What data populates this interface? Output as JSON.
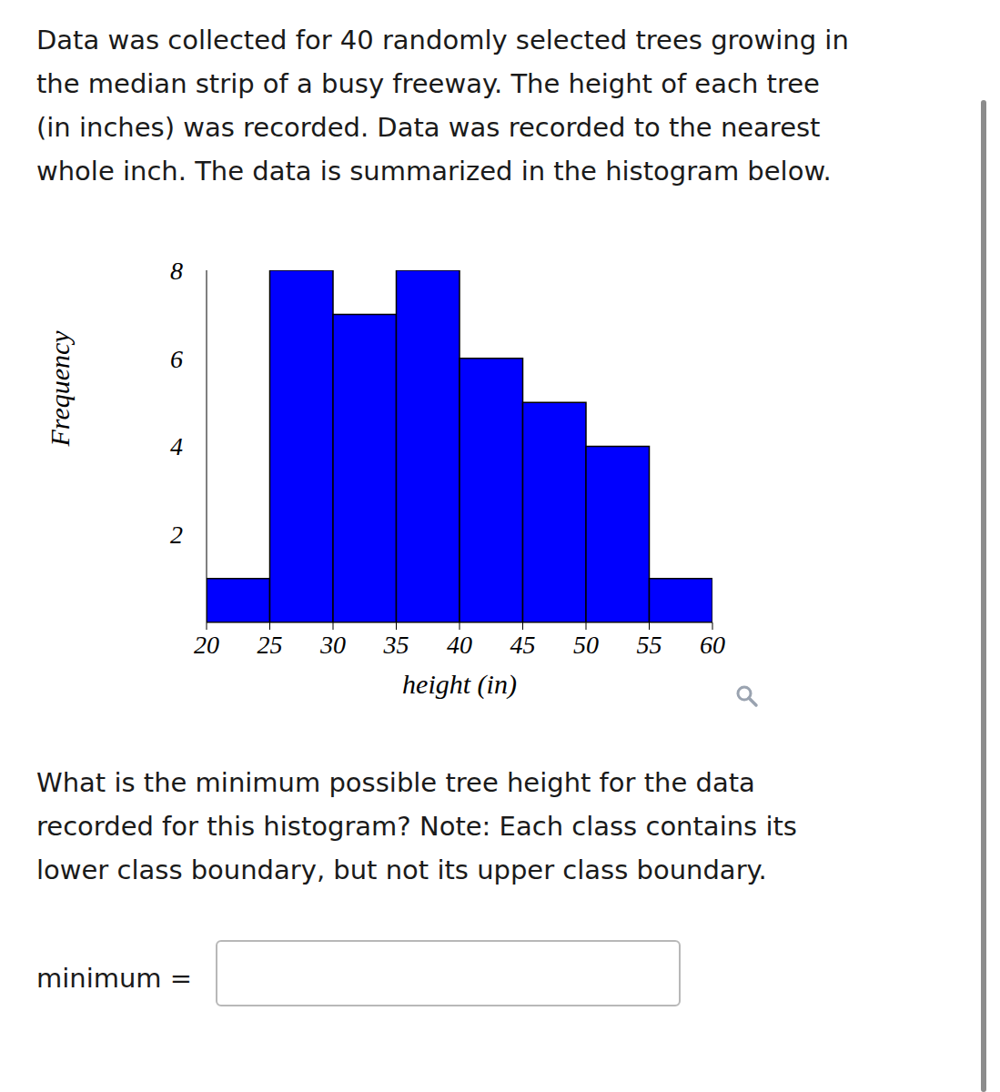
{
  "intro": {
    "lines": [
      "Data was collected for 40 randomly selected trees growing in",
      "the median strip of a busy freeway. The height of each tree",
      "(in inches) was recorded. Data was recorded to the nearest",
      "whole inch. The data is summarized in the histogram below."
    ]
  },
  "chart_data": {
    "type": "histogram",
    "bins": [
      20,
      25,
      30,
      35,
      40,
      45,
      50,
      55,
      60
    ],
    "values": [
      1,
      8,
      7,
      8,
      6,
      5,
      4,
      1
    ],
    "color": "#0000ff",
    "xlabel": "height (in)",
    "ylabel": "Frequency",
    "xlim": [
      20,
      60
    ],
    "ylim": [
      0,
      8
    ],
    "xticks": [
      20,
      25,
      30,
      35,
      40,
      45,
      50,
      55,
      60
    ],
    "yticks": [
      2,
      4,
      6,
      8
    ]
  },
  "question": {
    "lines": [
      "What is the minimum possible tree height for the data",
      "recorded for this histogram? Note: Each class contains its",
      "lower class boundary, but not its upper class boundary."
    ]
  },
  "answer": {
    "label": "minimum ="
  }
}
